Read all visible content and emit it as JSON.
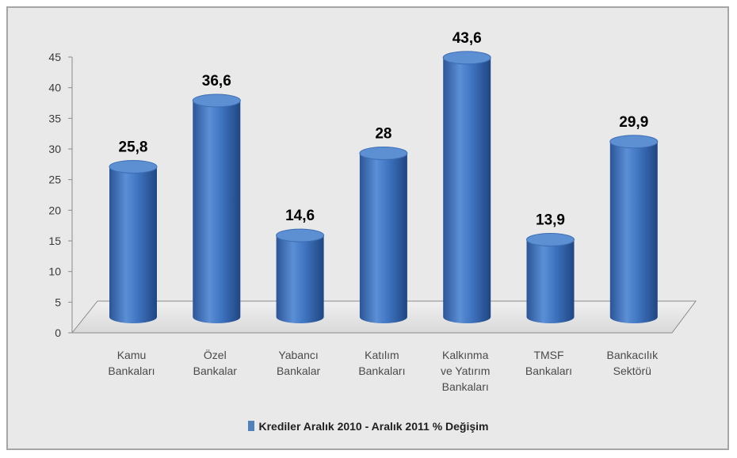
{
  "chart_data": {
    "type": "bar",
    "style": "3d-cylinder",
    "categories": [
      [
        "Kamu",
        "Bankaları"
      ],
      [
        "Özel",
        "Bankalar"
      ],
      [
        "Yabancı",
        "Bankalar"
      ],
      [
        "Katılım",
        "Bankaları"
      ],
      [
        "Kalkınma",
        "ve Yatırım",
        "Bankaları"
      ],
      [
        "TMSF",
        "Bankaları"
      ],
      [
        "Bankacılık",
        "Sektörü"
      ]
    ],
    "series": [
      {
        "name": "Krediler Aralık 2010 - Aralık 2011 % Değişim",
        "values": [
          25.8,
          36.6,
          14.6,
          28,
          43.6,
          13.9,
          29.9
        ],
        "data_labels": [
          "25,8",
          "36,6",
          "14,6",
          "28",
          "43,6",
          "13,9",
          "29,9"
        ],
        "color": "#4f81bd"
      }
    ],
    "ylim": [
      0,
      45
    ],
    "yticks": [
      0,
      5,
      10,
      15,
      20,
      25,
      30,
      35,
      40,
      45
    ],
    "grid": false,
    "legend_position": "bottom"
  },
  "colors": {
    "plot_background": "#e9e9e9",
    "bar_fill": "#4f81bd",
    "axis": "#8c8c8c"
  }
}
